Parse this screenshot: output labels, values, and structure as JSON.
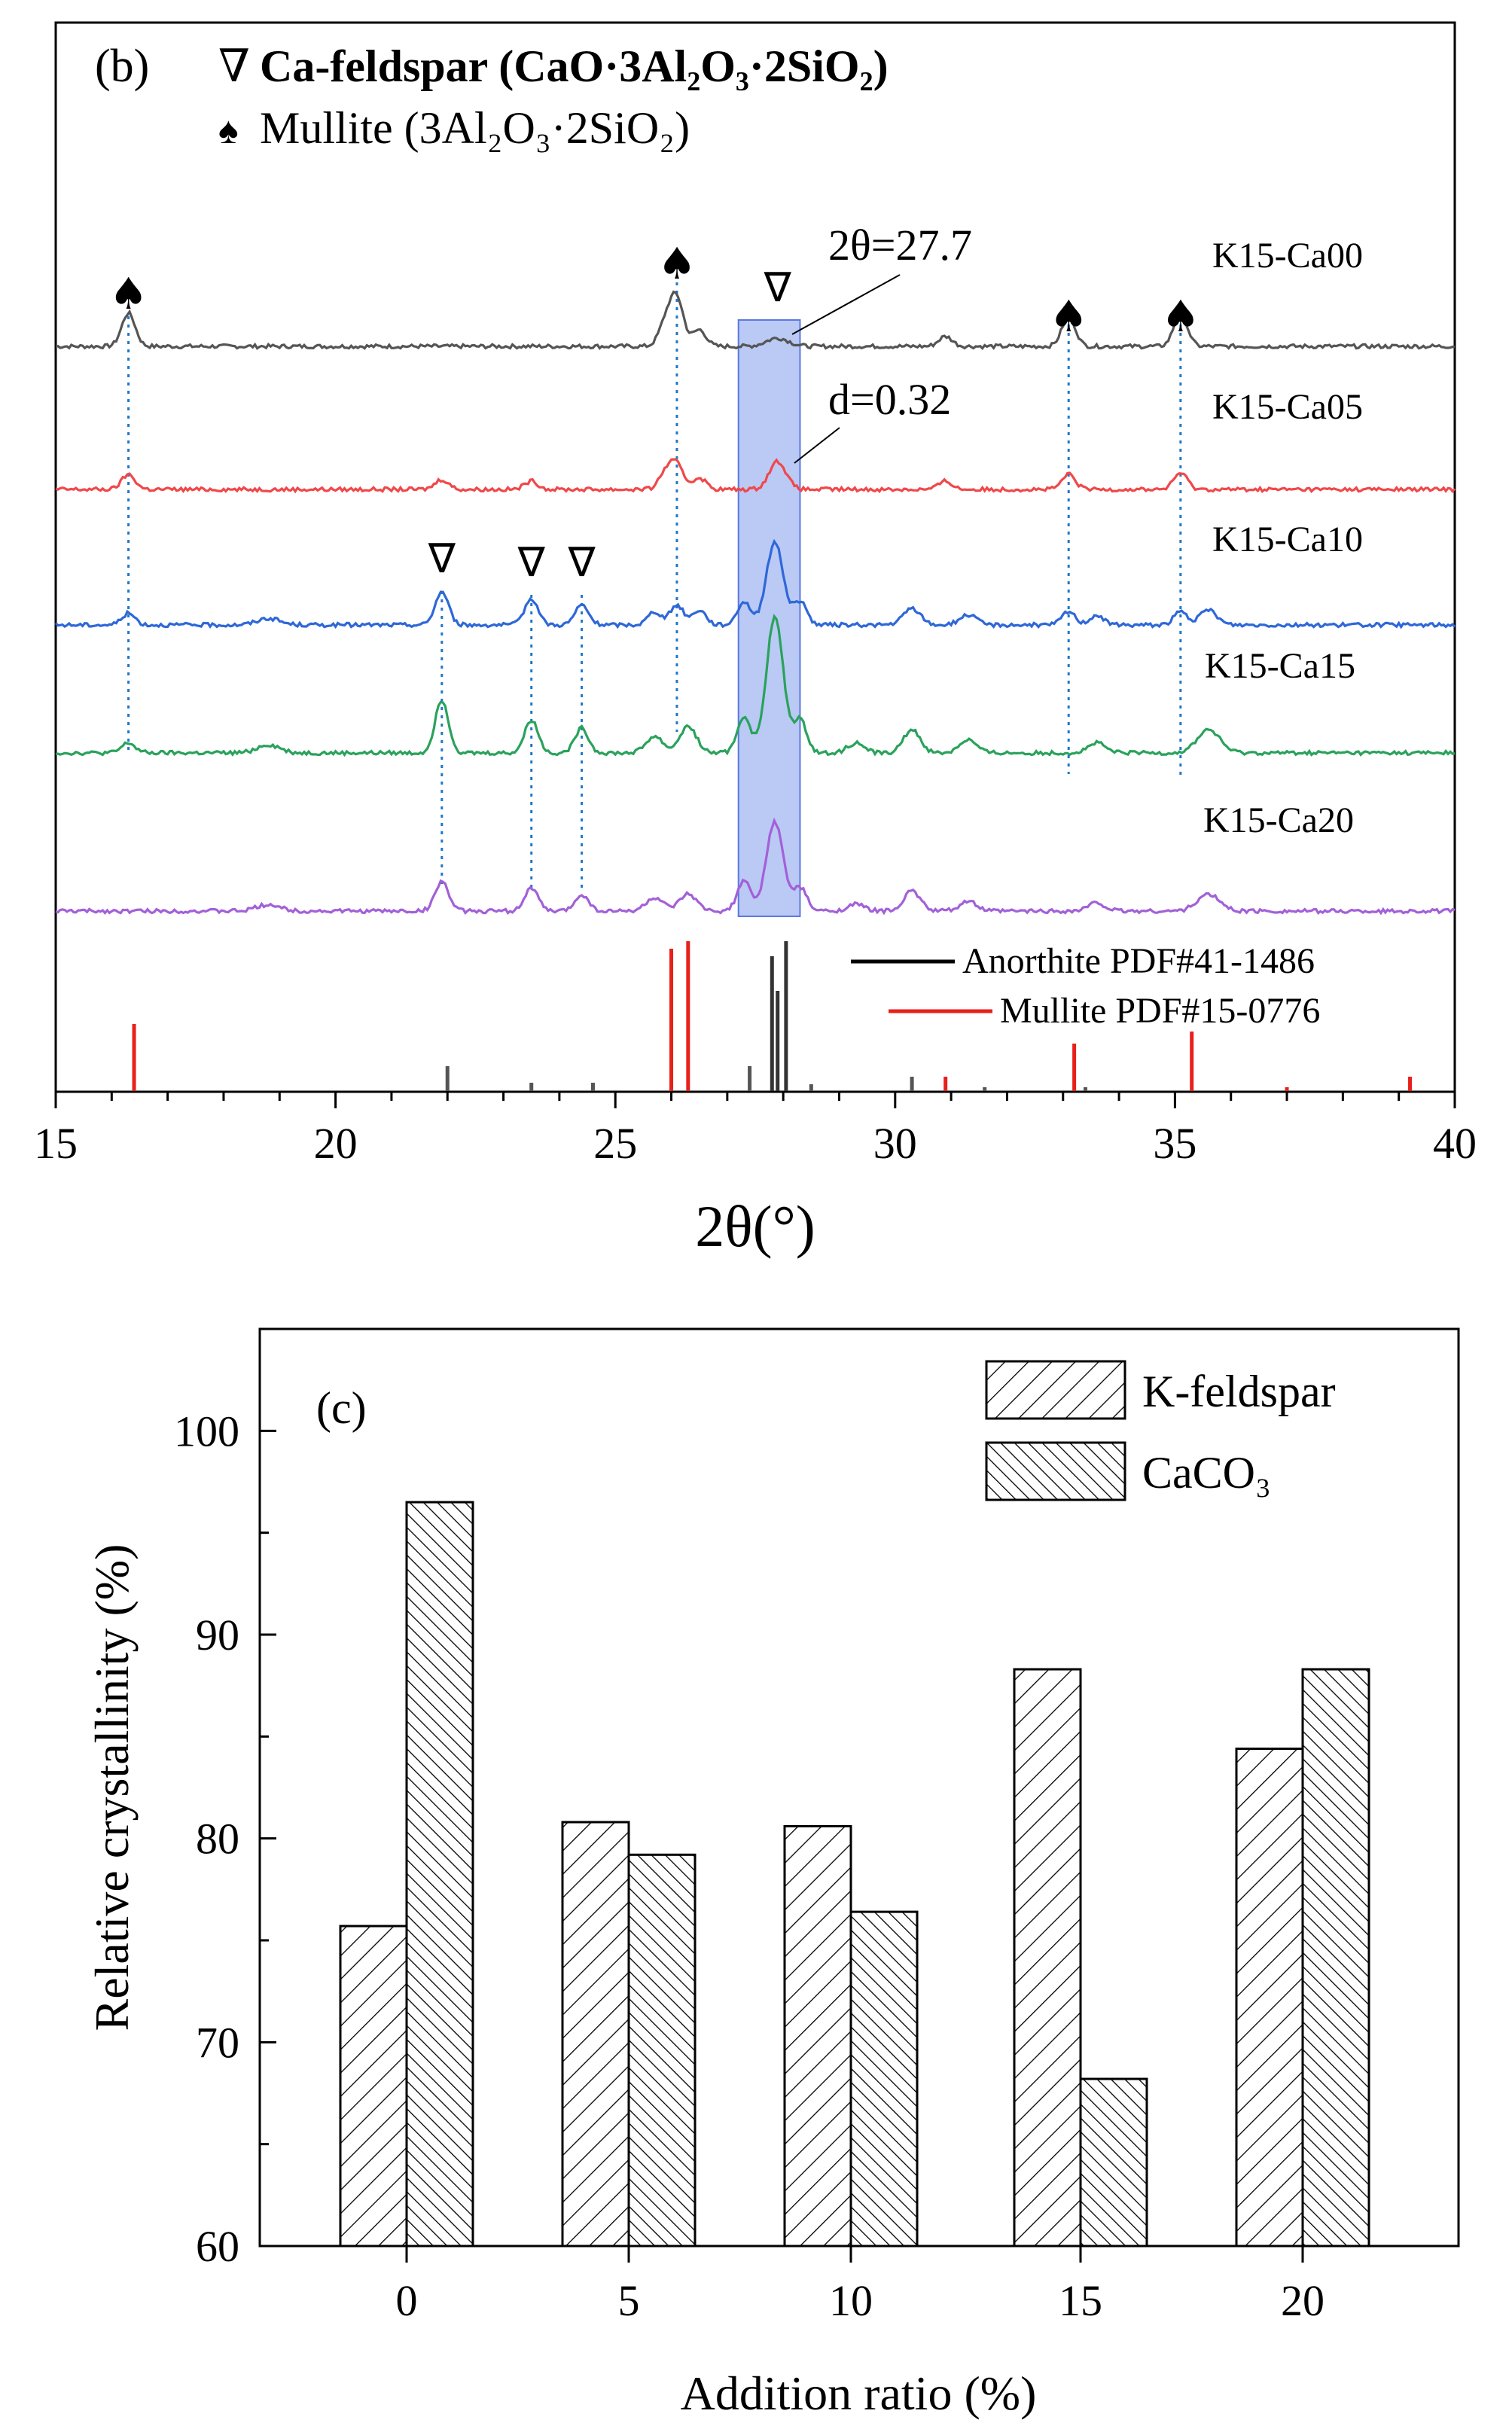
{
  "chart_data": [
    {
      "type": "line",
      "panel_label": "(b)",
      "xlabel": "2θ(°)",
      "xlim": [
        15,
        40
      ],
      "xticks": [
        15,
        20,
        25,
        30,
        35,
        40
      ],
      "legend_top": {
        "entry1": {
          "symbol": "∇",
          "text": "Ca-feldspar (CaO·3Al₂O₃·2SiO₂)"
        },
        "entry2": {
          "symbol": "♠",
          "text": "Mullite (3Al₂O₃·2SiO₂)"
        }
      },
      "annotations": {
        "two_theta": "2θ=27.7",
        "d_spacing": "d=0.32"
      },
      "highlight_band": [
        27.2,
        28.3
      ],
      "highlight_color": "#aabbf2",
      "mullite_markers": [
        16.3,
        26.1,
        33.1,
        35.1
      ],
      "cafeldspar_markers": [
        21.9,
        23.5,
        24.4,
        27.9
      ],
      "series": [
        {
          "name": "K15-Ca00",
          "color": "#555555",
          "peaks": [
            [
              16.3,
              1.0,
              0.12
            ],
            [
              25.9,
              0.7,
              0.12
            ],
            [
              26.1,
              1.4,
              0.12
            ],
            [
              26.5,
              0.5,
              0.12
            ],
            [
              27.9,
              0.25,
              0.2
            ],
            [
              30.9,
              0.3,
              0.12
            ],
            [
              33.1,
              0.9,
              0.12
            ],
            [
              35.1,
              1.0,
              0.12
            ]
          ]
        },
        {
          "name": "K15-Ca05",
          "color": "#f0484a",
          "peaks": [
            [
              16.3,
              0.45,
              0.12
            ],
            [
              21.9,
              0.3,
              0.12
            ],
            [
              23.5,
              0.25,
              0.12
            ],
            [
              25.9,
              0.5,
              0.12
            ],
            [
              26.1,
              0.7,
              0.12
            ],
            [
              26.5,
              0.35,
              0.12
            ],
            [
              27.9,
              0.85,
              0.15
            ],
            [
              30.9,
              0.25,
              0.12
            ],
            [
              33.1,
              0.45,
              0.12
            ],
            [
              35.1,
              0.5,
              0.12
            ]
          ]
        },
        {
          "name": "K15-Ca10",
          "color": "#2e68d8",
          "peaks": [
            [
              16.3,
              0.35,
              0.12
            ],
            [
              18.8,
              0.2,
              0.2
            ],
            [
              21.9,
              1.0,
              0.12
            ],
            [
              23.5,
              0.8,
              0.12
            ],
            [
              24.4,
              0.6,
              0.12
            ],
            [
              25.7,
              0.4,
              0.12
            ],
            [
              26.1,
              0.6,
              0.12
            ],
            [
              26.5,
              0.45,
              0.12
            ],
            [
              27.3,
              0.7,
              0.12
            ],
            [
              27.85,
              2.5,
              0.15
            ],
            [
              28.3,
              0.7,
              0.12
            ],
            [
              30.3,
              0.5,
              0.15
            ],
            [
              31.3,
              0.3,
              0.15
            ],
            [
              33.1,
              0.4,
              0.12
            ],
            [
              33.6,
              0.3,
              0.12
            ],
            [
              35.1,
              0.4,
              0.12
            ],
            [
              35.6,
              0.45,
              0.15
            ]
          ]
        },
        {
          "name": "K15-Ca15",
          "color": "#2aa25c",
          "peaks": [
            [
              16.3,
              0.3,
              0.12
            ],
            [
              18.8,
              0.25,
              0.2
            ],
            [
              21.9,
              1.6,
              0.12
            ],
            [
              23.5,
              1.0,
              0.12
            ],
            [
              24.4,
              0.75,
              0.12
            ],
            [
              25.7,
              0.5,
              0.15
            ],
            [
              26.3,
              0.8,
              0.15
            ],
            [
              27.3,
              1.1,
              0.12
            ],
            [
              27.85,
              4.1,
              0.15
            ],
            [
              28.3,
              1.0,
              0.12
            ],
            [
              29.3,
              0.3,
              0.15
            ],
            [
              30.3,
              0.7,
              0.15
            ],
            [
              31.3,
              0.4,
              0.15
            ],
            [
              33.6,
              0.3,
              0.15
            ],
            [
              35.6,
              0.7,
              0.2
            ]
          ]
        },
        {
          "name": "K15-Ca20",
          "color": "#a261d8",
          "peaks": [
            [
              18.8,
              0.2,
              0.2
            ],
            [
              21.9,
              0.9,
              0.12
            ],
            [
              23.5,
              0.7,
              0.12
            ],
            [
              24.4,
              0.5,
              0.12
            ],
            [
              25.7,
              0.4,
              0.15
            ],
            [
              26.3,
              0.5,
              0.15
            ],
            [
              27.3,
              0.9,
              0.12
            ],
            [
              27.85,
              2.7,
              0.15
            ],
            [
              28.3,
              0.7,
              0.12
            ],
            [
              29.3,
              0.2,
              0.15
            ],
            [
              30.3,
              0.6,
              0.15
            ],
            [
              31.3,
              0.3,
              0.15
            ],
            [
              33.6,
              0.25,
              0.15
            ],
            [
              35.6,
              0.5,
              0.2
            ]
          ]
        }
      ],
      "reference_legend": [
        {
          "name": "Anorthite PDF#41-1486",
          "color": "#000000"
        },
        {
          "name": "Mullite PDF#15-0776",
          "color": "#e8201c"
        }
      ],
      "reference_lines": {
        "anorthite": [
          [
            22.0,
            0.17
          ],
          [
            23.5,
            0.06
          ],
          [
            24.6,
            0.06
          ],
          [
            27.4,
            0.17
          ],
          [
            27.8,
            0.9
          ],
          [
            27.9,
            0.67
          ],
          [
            28.05,
            1.0
          ],
          [
            28.5,
            0.05
          ],
          [
            30.3,
            0.1
          ],
          [
            31.6,
            0.03
          ],
          [
            33.4,
            0.03
          ]
        ],
        "mullite": [
          [
            16.4,
            0.45
          ],
          [
            26.0,
            0.95
          ],
          [
            26.3,
            1.0
          ],
          [
            30.9,
            0.1
          ],
          [
            33.2,
            0.32
          ],
          [
            35.3,
            0.4
          ],
          [
            37.0,
            0.03
          ],
          [
            39.2,
            0.1
          ]
        ]
      }
    },
    {
      "type": "bar",
      "panel_label": "(c)",
      "xlabel": "Addition ratio (%)",
      "ylabel": "Relative crystallinity (%)",
      "ylim": [
        60,
        105
      ],
      "yticks": [
        60,
        70,
        80,
        90,
        100
      ],
      "categories": [
        "0",
        "5",
        "10",
        "15",
        "20"
      ],
      "series": [
        {
          "name": "K-feldspar",
          "legend_label": "K-feldspar",
          "values": [
            75.7,
            80.8,
            80.6,
            88.3,
            84.4
          ]
        },
        {
          "name": "CaCO3",
          "legend_label": "CaCO₃",
          "values": [
            96.5,
            79.2,
            76.4,
            68.2,
            88.3
          ]
        }
      ]
    }
  ]
}
